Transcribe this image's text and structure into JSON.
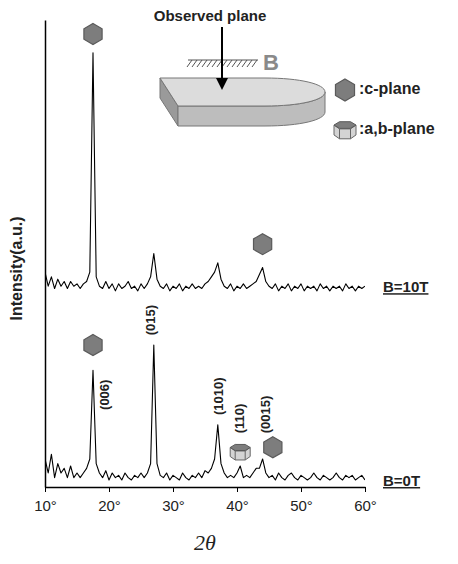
{
  "chart_data": {
    "type": "line",
    "x_label": "2θ",
    "y_label": "Intensity(a.u.)",
    "x": [
      10,
      10.5,
      11,
      11.5,
      12,
      12.5,
      13,
      13.5,
      14,
      14.5,
      15,
      15.5,
      16,
      16.5,
      17,
      17.5,
      18,
      18.5,
      19,
      19.5,
      20,
      20.5,
      21,
      21.5,
      22,
      22.5,
      23,
      23.5,
      24,
      24.5,
      25,
      25.5,
      26,
      26.5,
      27,
      27.5,
      28,
      28.5,
      29,
      29.5,
      30,
      30.5,
      31,
      31.5,
      32,
      32.5,
      33,
      33.5,
      34,
      34.5,
      35,
      35.5,
      36,
      36.5,
      37,
      37.5,
      38,
      38.5,
      39,
      39.5,
      40,
      40.5,
      41,
      41.5,
      42,
      42.5,
      43,
      43.5,
      44,
      44.5,
      45,
      45.5,
      46,
      46.5,
      47,
      47.5,
      48,
      48.5,
      49,
      49.5,
      50,
      50.5,
      51,
      51.5,
      52,
      52.5,
      53,
      53.5,
      54,
      54.5,
      55,
      55.5,
      56,
      56.5,
      57,
      57.5,
      58,
      58.5,
      59,
      59.5,
      60
    ],
    "xlim": [
      10,
      60
    ],
    "xticks": [
      {
        "value": 10,
        "label": "10°"
      },
      {
        "value": 20,
        "label": "20°"
      },
      {
        "value": 30,
        "label": "30°"
      },
      {
        "value": 40,
        "label": "40°"
      },
      {
        "value": 50,
        "label": "50°"
      },
      {
        "value": 60,
        "label": "60°"
      }
    ],
    "ylim": [
      0,
      100
    ],
    "yticks": [],
    "tick_labels": "x",
    "series": [
      {
        "name": "B=10T",
        "color": "#000000",
        "values": [
          46,
          43,
          45,
          42.5,
          44.5,
          43,
          44,
          42.5,
          44,
          43,
          43.5,
          42.5,
          43.5,
          44,
          46,
          93,
          45,
          43,
          42.5,
          44,
          42.5,
          43.5,
          42,
          43.5,
          42.5,
          43,
          44,
          42.5,
          43,
          42,
          43.5,
          42.5,
          43.5,
          45,
          50,
          44.5,
          43,
          42.5,
          43.5,
          42,
          43,
          42.5,
          43.5,
          42,
          43,
          42.5,
          43.5,
          42.5,
          43,
          42.5,
          43.5,
          44,
          45,
          46,
          48,
          44.5,
          43,
          42.5,
          43.5,
          42,
          43,
          42.5,
          43.5,
          42.5,
          43,
          43.5,
          44,
          45.5,
          47,
          44,
          43,
          42.5,
          43.5,
          42,
          43,
          42.5,
          43.5,
          42,
          43,
          42.5,
          43.5,
          42,
          43,
          42.5,
          43,
          42,
          43.5,
          42.5,
          43,
          42,
          43,
          42.5,
          43,
          42,
          43.5,
          42.5,
          43,
          42,
          43,
          42.5,
          43
        ]
      },
      {
        "name": "B=0T",
        "color": "#000000",
        "values": [
          6,
          3,
          7,
          2,
          5,
          3,
          4,
          2,
          4.5,
          2,
          3,
          2,
          3,
          4,
          6,
          25,
          5,
          3,
          2,
          3.5,
          1.5,
          3,
          2,
          2.5,
          1.5,
          3,
          2,
          1.5,
          2.5,
          2,
          3,
          2,
          3,
          5,
          30.4,
          5,
          2.5,
          2,
          3,
          1.5,
          2.5,
          2,
          1.5,
          3,
          2,
          1.5,
          2.5,
          2,
          3,
          2,
          3.5,
          3,
          4,
          6,
          13.3,
          5,
          3,
          2,
          2.5,
          2,
          3,
          4.5,
          2,
          2.5,
          2,
          3,
          4,
          4,
          6,
          3,
          2,
          2.5,
          1.5,
          3,
          2,
          1.5,
          2.5,
          3,
          2,
          1.5,
          2.5,
          2,
          1.5,
          2,
          3,
          2,
          1.5,
          2.5,
          2,
          1.5,
          2,
          3,
          2,
          1.5,
          2.5,
          2,
          2.5,
          1.5,
          2,
          2.5,
          1.5
        ]
      }
    ],
    "annotations": [
      {
        "text": "(006)",
        "x": 19.5,
        "y": 16.5
      },
      {
        "text": "(015)",
        "x": 26.6,
        "y": 32.5
      },
      {
        "text": "(1010)",
        "x": 37.2,
        "y": 15.4
      },
      {
        "text": "(110)",
        "x": 40.5,
        "y": 11.5
      },
      {
        "text": "(0015)",
        "x": 44.6,
        "y": 11.5
      }
    ],
    "plane_legend": [
      ":c-plane",
      ":a,b-plane"
    ],
    "legend": "top-right",
    "plane_icons": [
      {
        "plane": ":c-plane",
        "x": 17.5,
        "y": 97
      },
      {
        "plane": ":c-plane",
        "x": 44,
        "y": 52
      },
      {
        "plane": ":c-plane",
        "x": 17.5,
        "y": 30.4
      },
      {
        "plane": ":a,b-plane",
        "x": 40.5,
        "y": 7.5
      },
      {
        "plane": ":c-plane",
        "x": 45.6,
        "y": 8.5
      }
    ],
    "inset": {
      "label": "Observed plane",
      "field": "B"
    }
  }
}
